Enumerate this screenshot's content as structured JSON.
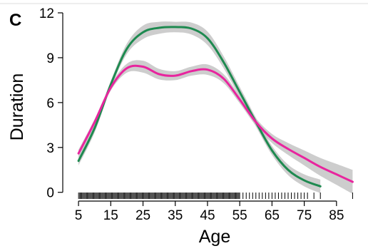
{
  "chart_data": {
    "type": "line",
    "panel_label": "C",
    "title": "",
    "xlabel": "Age",
    "ylabel": "Duration",
    "xlim": [
      1,
      93
    ],
    "ylim": [
      -0.3,
      12
    ],
    "x_ticks": [
      5,
      15,
      25,
      35,
      45,
      55,
      65,
      75,
      85
    ],
    "y_ticks": [
      0,
      3,
      6,
      9,
      12
    ],
    "grid": false,
    "legend": "none",
    "series": [
      {
        "color": "#1e8a50",
        "band_color": "#c4c4c4",
        "x": [
          5,
          10,
          15,
          20,
          25,
          30,
          35,
          40,
          45,
          50,
          55,
          60,
          65,
          70,
          75,
          80
        ],
        "y": [
          2.1,
          4.3,
          7.2,
          9.6,
          10.7,
          11.0,
          11.05,
          10.95,
          10.3,
          8.7,
          6.7,
          4.7,
          2.8,
          1.5,
          0.8,
          0.4
        ],
        "band": [
          0.3,
          0.3,
          0.25,
          0.35,
          0.45,
          0.4,
          0.35,
          0.4,
          0.45,
          0.4,
          0.35,
          0.3,
          0.3,
          0.35,
          0.4,
          0.45
        ]
      },
      {
        "color": "#e8259e",
        "band_color": "#c4c4c4",
        "x": [
          5,
          10,
          15,
          20,
          25,
          30,
          35,
          40,
          45,
          50,
          55,
          60,
          65,
          70,
          75,
          80,
          85,
          90
        ],
        "y": [
          2.6,
          4.7,
          7.0,
          8.3,
          8.4,
          7.9,
          7.8,
          8.1,
          8.2,
          7.6,
          6.2,
          4.7,
          3.6,
          2.9,
          2.3,
          1.7,
          1.2,
          0.7
        ],
        "band": [
          0.25,
          0.2,
          0.2,
          0.3,
          0.4,
          0.35,
          0.3,
          0.3,
          0.35,
          0.3,
          0.25,
          0.25,
          0.3,
          0.4,
          0.5,
          0.6,
          0.7,
          0.8
        ]
      }
    ],
    "rug": {
      "dense_ranges": [
        [
          5,
          55
        ]
      ],
      "sparse_points": [
        56,
        57,
        58,
        59,
        60,
        61,
        62,
        63,
        64,
        65,
        66,
        67,
        68,
        69,
        70,
        71,
        72,
        73,
        74,
        75,
        76,
        78,
        80,
        90
      ]
    }
  }
}
